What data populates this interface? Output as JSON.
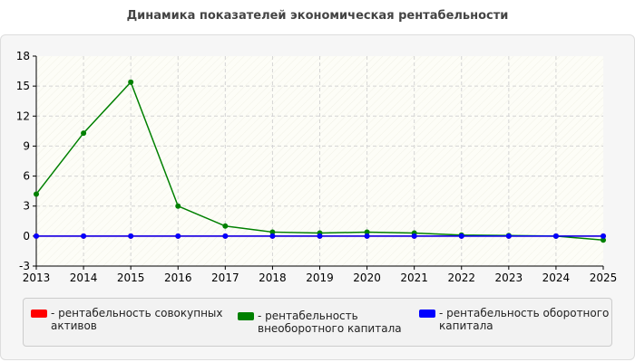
{
  "chart_data": {
    "type": "line",
    "title": "Динамика показателей экономическая рентабельности",
    "x": [
      "2013",
      "2014",
      "2015",
      "2016",
      "2017",
      "2018",
      "2019",
      "2020",
      "2021",
      "2022",
      "2023",
      "2024",
      "2025"
    ],
    "ylim": [
      -3,
      18
    ],
    "yticks": [
      -3,
      0,
      3,
      6,
      9,
      12,
      15,
      18
    ],
    "grid": true,
    "legend_position": "bottom",
    "series": [
      {
        "name": "- рентабельность совокупных активов",
        "color": "#ff0000",
        "values": [
          0,
          0,
          0,
          0,
          0,
          0,
          0,
          0,
          0,
          0,
          0,
          0,
          0
        ]
      },
      {
        "name": "- рентабельность внеоборотного капитала",
        "color": "#008000",
        "values": [
          4.2,
          10.3,
          15.4,
          3.0,
          1.0,
          0.4,
          0.3,
          0.4,
          0.3,
          0.1,
          0.05,
          0.0,
          -0.4
        ]
      },
      {
        "name": "- рентабельность оборотного капитала",
        "color": "#0000ff",
        "values": [
          0,
          0,
          0,
          0,
          0,
          0,
          0,
          0,
          0,
          0,
          0,
          0,
          0
        ]
      }
    ]
  }
}
